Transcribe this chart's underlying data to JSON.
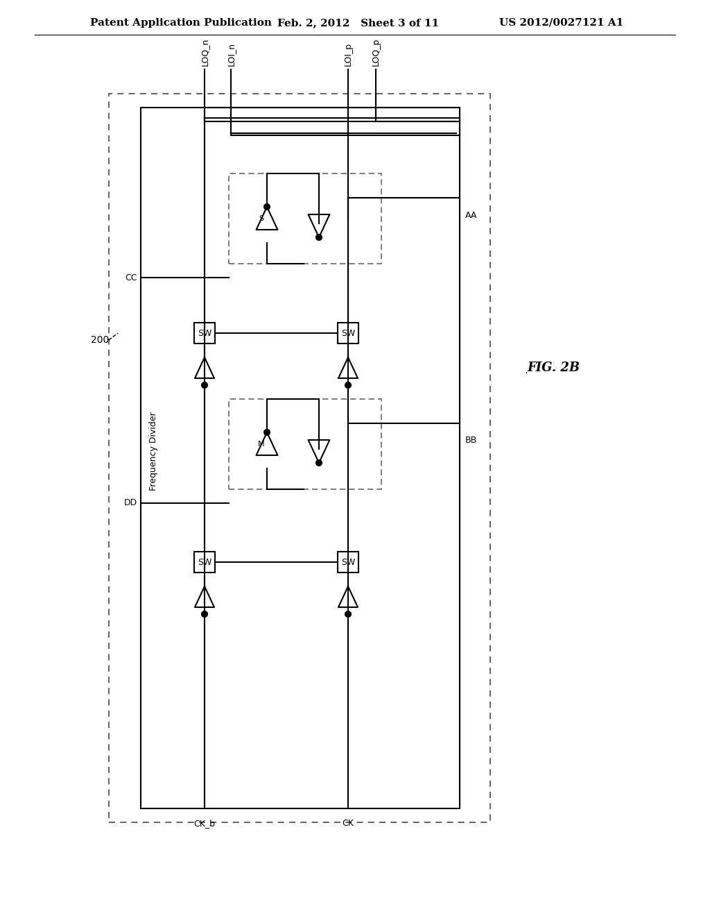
{
  "title_left": "Patent Application Publication",
  "title_mid": "Feb. 2, 2012   Sheet 3 of 11",
  "title_right": "US 2012/0027121 A1",
  "fig_label": "FIG. 2B",
  "label_200": "200",
  "label_freq_div": "Frequency Divider",
  "signals_top": [
    "LOQ_n",
    "LOI_n",
    "LOI_p",
    "LOQ_p"
  ],
  "signals_bottom": [
    "CK_b",
    "CK"
  ],
  "node_labels": [
    "AA",
    "CC",
    "BB",
    "DD"
  ],
  "sw_label": "SW",
  "bg_color": "#ffffff",
  "line_color": "#000000",
  "box_color": "#000000",
  "dashed_color": "#555555"
}
